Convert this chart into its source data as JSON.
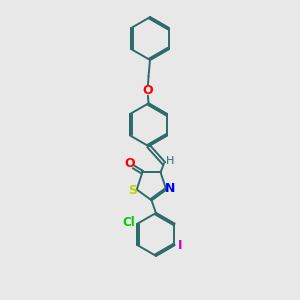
{
  "background_color": "#e8e8e8",
  "bond_color": "#2d6b6b",
  "atom_colors": {
    "O": "#ff0000",
    "S": "#cccc00",
    "N": "#0000ff",
    "Cl": "#00cc00",
    "I": "#cc00cc",
    "H": "#2d6b6b",
    "C": "#2d6b6b"
  },
  "figsize": [
    3.0,
    3.0
  ],
  "dpi": 100
}
